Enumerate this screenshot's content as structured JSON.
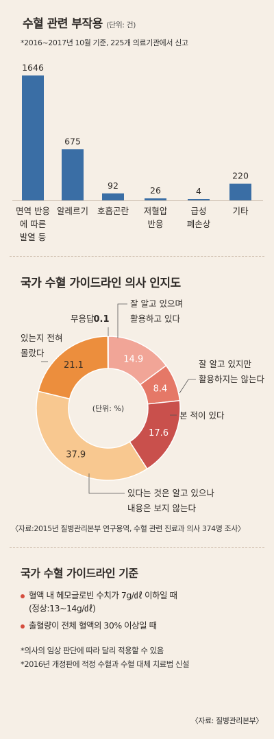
{
  "chart_data": [
    {
      "type": "bar",
      "title": "수혈 관련 부작용",
      "unit": "(단위: 건)",
      "note": "*2016~2017년 10월 기준,  225개 의료기관에서 신고",
      "categories": [
        [
          "면역 반응",
          "에 따른",
          "발열 등"
        ],
        [
          "알레르기"
        ],
        [
          "호흡곤란"
        ],
        [
          "저혈압",
          "반응"
        ],
        [
          "급성",
          "폐손상"
        ],
        [
          "기타"
        ]
      ],
      "values": [
        1646,
        675,
        92,
        26,
        4,
        220
      ],
      "value_labels": [
        "1646",
        "675",
        "92",
        "26",
        "4",
        "220"
      ],
      "ylim": [
        0,
        1646
      ],
      "bar_color": "#3a6ea5",
      "legend": "none",
      "grid": false
    },
    {
      "type": "pie",
      "title": "국가 수혈 가이드라인 의사 인지도",
      "unit": "(단위: %)",
      "slices": [
        {
          "label": [
            "잘 알고 있으며",
            "활용하고 있다"
          ],
          "value": 14.9,
          "value_label": "14.9",
          "color": "#f1a597"
        },
        {
          "label": [
            "잘 알고 있지만",
            "활용하지는 않는다"
          ],
          "value": 8.4,
          "value_label": "8.4",
          "color": "#e57867"
        },
        {
          "label": [
            "본 적이 있다"
          ],
          "value": 17.6,
          "value_label": "17.6",
          "color": "#c9504c"
        },
        {
          "label": [
            "있다는 것은 알고 있으나",
            "내용은 보지 않는다"
          ],
          "value": 37.9,
          "value_label": "37.9",
          "color": "#f8c890"
        },
        {
          "label": [
            "있는지 전혀",
            "몰랐다"
          ],
          "value": 21.1,
          "value_label": "21.1",
          "color": "#ec8e3d"
        },
        {
          "label": [
            "무응답"
          ],
          "value": 0.1,
          "value_label": "0.1",
          "color": "#555555"
        }
      ],
      "source": "〈자료:2015년 질병관리본부 연구용역, 수혈 관련 진료과 의사 374명 조사〉"
    }
  ],
  "standards": {
    "title": "국가 수혈 가이드라인 기준",
    "items": [
      {
        "line1": "혈액 내 헤모글로빈 수치가 7g/㎗ 이하일 때",
        "line2": "(정상:13~14g/㎗)"
      },
      {
        "line1": "출혈량이 전체 혈액의 30% 이상일 때",
        "line2": ""
      }
    ],
    "notes": [
      "*의사의 임상 판단에 따라 달리 적용할 수 있음",
      "*2016년 개정판에 적정 수혈과 수혈 대체 치료법 신설"
    ],
    "source": "〈자료: 질병관리본부〉",
    "bullet_color": "#d54d3d"
  }
}
